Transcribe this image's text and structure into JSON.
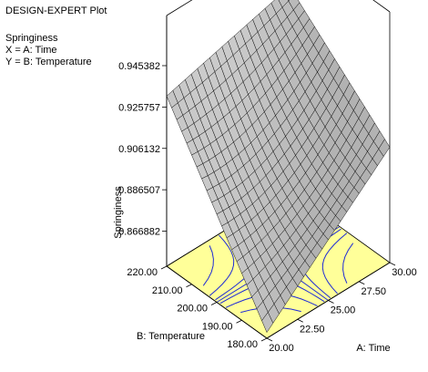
{
  "header": {
    "program": "DESIGN-EXPERT Plot",
    "response": "Springiness",
    "x_factor": "X = A: Time",
    "y_factor": "Y = B: Temperature"
  },
  "colors": {
    "base": "#ffff99",
    "contour": "#1f2bd6",
    "surface_light": "#dcdcdc",
    "surface_dark": "#7a7a7a"
  },
  "chart_data": {
    "type": "surface",
    "title": "",
    "xlabel": "A: Time",
    "ylabel": "B: Temperature",
    "zlabel": "Springiness",
    "x_ticks": [
      "20.00",
      "22.50",
      "25.00",
      "27.50",
      "30.00"
    ],
    "y_ticks": [
      "180.00",
      "190.00",
      "200.00",
      "210.00",
      "220.00"
    ],
    "z_ticks": [
      "0.866882",
      "0.886507",
      "0.906132",
      "0.925757",
      "0.945382"
    ],
    "xlim": [
      20,
      30
    ],
    "ylim": [
      180,
      220
    ],
    "zlim": [
      0.866882,
      0.945382
    ],
    "surface_corners": {
      "time20_temp180": 0.853,
      "time30_temp180": 0.905,
      "time20_temp220": 0.931,
      "time30_temp220": 0.947
    },
    "surface_center": 0.899,
    "grid": "20x20"
  }
}
